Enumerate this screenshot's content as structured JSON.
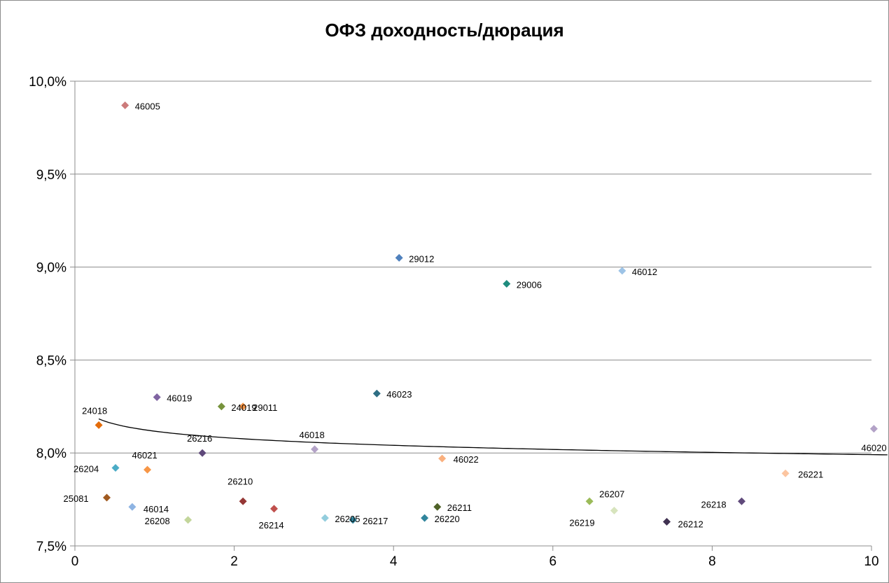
{
  "chart_data": {
    "type": "scatter",
    "title": "ОФЗ доходность/дюрация",
    "xlabel": "",
    "ylabel": "",
    "xlim": [
      0,
      10
    ],
    "ylim": [
      7.5,
      10.0
    ],
    "x_ticks": [
      0,
      2,
      4,
      6,
      8,
      10
    ],
    "x_tick_labels": [
      "0",
      "2",
      "4",
      "6",
      "8",
      "10"
    ],
    "y_ticks": [
      7.5,
      8.0,
      8.5,
      9.0,
      9.5,
      10.0
    ],
    "y_tick_labels": [
      "7,5%",
      "8,0%",
      "8,5%",
      "9,0%",
      "9,5%",
      "10,0%"
    ],
    "grid": "horizontal",
    "legend": "none",
    "points": [
      {
        "label": "46005",
        "x": 0.63,
        "y": 9.87,
        "color": "#cc7b7b"
      },
      {
        "label": "29012",
        "x": 4.07,
        "y": 9.05,
        "color": "#4f81bd"
      },
      {
        "label": "46012",
        "x": 6.87,
        "y": 8.98,
        "color": "#9dc3e6"
      },
      {
        "label": "29006",
        "x": 5.42,
        "y": 8.91,
        "color": "#1e8c7e"
      },
      {
        "label": "46023",
        "x": 3.79,
        "y": 8.32,
        "color": "#2e6e84"
      },
      {
        "label": "46019",
        "x": 1.03,
        "y": 8.3,
        "color": "#8064a2"
      },
      {
        "label": "24019",
        "x": 1.84,
        "y": 8.25,
        "color": "#77933c"
      },
      {
        "label": "29011",
        "x": 2.11,
        "y": 8.25,
        "color": "#f79646"
      },
      {
        "label": "24018",
        "x": 0.3,
        "y": 8.15,
        "color": "#e46c0a"
      },
      {
        "label": "46020",
        "x": 10.03,
        "y": 8.13,
        "color": "#b3a2c7"
      },
      {
        "label": "46018",
        "x": 3.01,
        "y": 8.02,
        "color": "#b3a2c7"
      },
      {
        "label": "26216",
        "x": 1.6,
        "y": 8.0,
        "color": "#5f497a"
      },
      {
        "label": "46022",
        "x": 4.61,
        "y": 7.97,
        "color": "#fab07e"
      },
      {
        "label": "26204",
        "x": 0.51,
        "y": 7.92,
        "color": "#4bacc6"
      },
      {
        "label": "46021",
        "x": 0.91,
        "y": 7.91,
        "color": "#f79646"
      },
      {
        "label": "26221",
        "x": 8.92,
        "y": 7.89,
        "color": "#fcc5a0"
      },
      {
        "label": "25081",
        "x": 0.4,
        "y": 7.76,
        "color": "#a05a20"
      },
      {
        "label": "26210",
        "x": 2.11,
        "y": 7.74,
        "color": "#953735"
      },
      {
        "label": "26207",
        "x": 6.46,
        "y": 7.74,
        "color": "#9bbb59"
      },
      {
        "label": "26218",
        "x": 8.37,
        "y": 7.74,
        "color": "#604a7b"
      },
      {
        "label": "46014",
        "x": 0.72,
        "y": 7.71,
        "color": "#8eb4e3"
      },
      {
        "label": "26211",
        "x": 4.55,
        "y": 7.71,
        "color": "#4f6228"
      },
      {
        "label": "26214",
        "x": 2.5,
        "y": 7.7,
        "color": "#c0504d"
      },
      {
        "label": "26219",
        "x": 6.77,
        "y": 7.69,
        "color": "#d7e4bd"
      },
      {
        "label": "26205",
        "x": 3.14,
        "y": 7.65,
        "color": "#93cddd"
      },
      {
        "label": "26220",
        "x": 4.39,
        "y": 7.65,
        "color": "#31859c"
      },
      {
        "label": "26208",
        "x": 1.42,
        "y": 7.64,
        "color": "#c3d69b"
      },
      {
        "label": "26217",
        "x": 3.49,
        "y": 7.64,
        "color": "#31859c"
      },
      {
        "label": "26212",
        "x": 7.43,
        "y": 7.63,
        "color": "#403151"
      }
    ],
    "trendline": {
      "type": "logarithmic",
      "x_range": [
        0.3,
        10.2
      ],
      "color": "#000000"
    }
  }
}
